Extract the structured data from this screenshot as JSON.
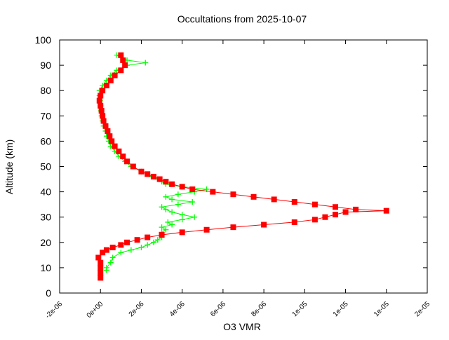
{
  "chart_data": {
    "type": "scatter",
    "title": "Occultations from 2025-10-07",
    "xlabel": "O3 VMR",
    "ylabel": "Altitude (km)",
    "xlim": [
      -2e-06,
      1.6e-05
    ],
    "ylim": [
      0,
      100
    ],
    "x_ticks": [
      -2e-06,
      0,
      2e-06,
      4e-06,
      6e-06,
      8e-06,
      1e-05,
      1.2e-05,
      1.4e-05,
      1.6e-05
    ],
    "x_tick_labels": [
      "-2e-06",
      "0e+00",
      "2e-06",
      "4e-06",
      "6e-06",
      "8e-06",
      "1e-05",
      "1e-05",
      "1e-05",
      "2e-05"
    ],
    "y_ticks": [
      0,
      10,
      20,
      30,
      40,
      50,
      60,
      70,
      80,
      90,
      100
    ],
    "y_tick_labels": [
      "0",
      "10",
      "20",
      "30",
      "40",
      "50",
      "60",
      "70",
      "80",
      "90",
      "100"
    ],
    "grid": false,
    "legend": "none",
    "series": [
      {
        "name": "green",
        "color": "#00ff00",
        "marker": "plus",
        "x_scale": 1e-06,
        "alt": [
          9,
          10,
          12,
          14,
          16,
          17,
          18,
          19,
          20,
          21,
          22,
          23,
          24,
          25,
          26,
          27,
          28,
          29,
          30,
          31,
          32,
          33,
          34,
          35,
          36,
          37,
          38,
          39,
          40,
          41,
          42,
          43,
          44,
          45,
          46,
          48,
          50,
          52,
          54,
          56,
          58,
          60,
          62,
          64,
          66,
          68,
          70,
          72,
          74,
          76,
          78,
          80,
          82,
          84,
          86,
          88,
          90,
          91,
          92,
          93,
          94
        ],
        "vmr": [
          0.3,
          0.3,
          0.5,
          0.6,
          1.0,
          1.5,
          2.0,
          2.3,
          2.6,
          2.8,
          3.0,
          3.0,
          3.0,
          3.2,
          3.0,
          3.5,
          3.3,
          4.0,
          4.6,
          4.0,
          3.5,
          3.2,
          3.0,
          3.8,
          4.5,
          3.5,
          3.2,
          3.8,
          4.6,
          5.2,
          4.0,
          3.2,
          3.0,
          2.8,
          2.5,
          2.0,
          1.5,
          1.2,
          0.9,
          0.7,
          0.5,
          0.4,
          0.3,
          0.25,
          0.15,
          0.1,
          0.05,
          0.02,
          0.0,
          -0.02,
          -0.05,
          -0.05,
          0.1,
          0.3,
          0.5,
          0.8,
          1.3,
          2.2,
          1.3,
          1.0,
          0.8
        ]
      },
      {
        "name": "red",
        "color": "#ff0000",
        "marker": "square",
        "x_scale": 1e-06,
        "alt": [
          6,
          8,
          10,
          12,
          14,
          16,
          17,
          18,
          19,
          20,
          21,
          22,
          23,
          24,
          25,
          26,
          27,
          28,
          29,
          30,
          31,
          32,
          32.5,
          33,
          34,
          35,
          36,
          37,
          38,
          39,
          40,
          41,
          42,
          43,
          44,
          45,
          46,
          47,
          48,
          50,
          52,
          54,
          56,
          58,
          60,
          62,
          64,
          66,
          68,
          70,
          72,
          74,
          76,
          78,
          80,
          82,
          84,
          86,
          88,
          90,
          92,
          94
        ],
        "vmr": [
          0.0,
          0.0,
          0.0,
          0.0,
          -0.1,
          0.1,
          0.3,
          0.6,
          1.0,
          1.3,
          1.8,
          2.3,
          3.0,
          4.0,
          5.2,
          6.5,
          8.0,
          9.5,
          10.5,
          11.0,
          11.5,
          12.0,
          14.0,
          12.5,
          11.5,
          10.5,
          9.5,
          8.5,
          7.5,
          6.5,
          5.5,
          4.5,
          4.0,
          3.5,
          3.2,
          2.9,
          2.6,
          2.3,
          2.0,
          1.6,
          1.3,
          1.1,
          0.9,
          0.7,
          0.55,
          0.45,
          0.35,
          0.25,
          0.15,
          0.1,
          0.05,
          0.0,
          -0.05,
          0.0,
          0.1,
          0.3,
          0.5,
          0.7,
          1.0,
          1.2,
          1.1,
          1.0
        ]
      }
    ]
  }
}
